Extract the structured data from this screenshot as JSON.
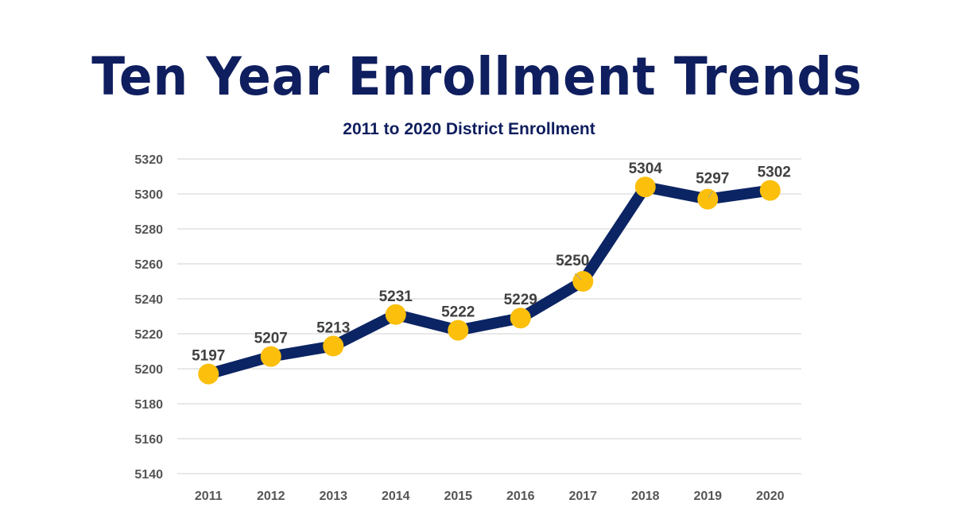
{
  "header": {
    "title": "Ten Year Enrollment Trends",
    "subtitle": "2011 to 2020 District Enrollment"
  },
  "colors": {
    "title": "#0f1e5e",
    "line": "#0b2463",
    "marker": "#fbbf0c",
    "grid": "#d9d9d9",
    "tick_text": "#555555",
    "label_text": "#404040"
  },
  "chart_data": {
    "type": "line",
    "title": "Ten Year Enrollment Trends",
    "subtitle": "2011 to 2020 District Enrollment",
    "xlabel": "",
    "ylabel": "",
    "categories": [
      "2011",
      "2012",
      "2013",
      "2014",
      "2015",
      "2016",
      "2017",
      "2018",
      "2019",
      "2020"
    ],
    "series": [
      {
        "name": "District Enrollment",
        "values": [
          5197,
          5207,
          5213,
          5231,
          5222,
          5229,
          5250,
          5304,
          5297,
          5302
        ]
      }
    ],
    "ylim": [
      5140,
      5320
    ],
    "yticks": [
      5140,
      5160,
      5180,
      5200,
      5220,
      5240,
      5260,
      5280,
      5300,
      5320
    ],
    "grid": true,
    "legend": "none",
    "data_labels": true
  }
}
